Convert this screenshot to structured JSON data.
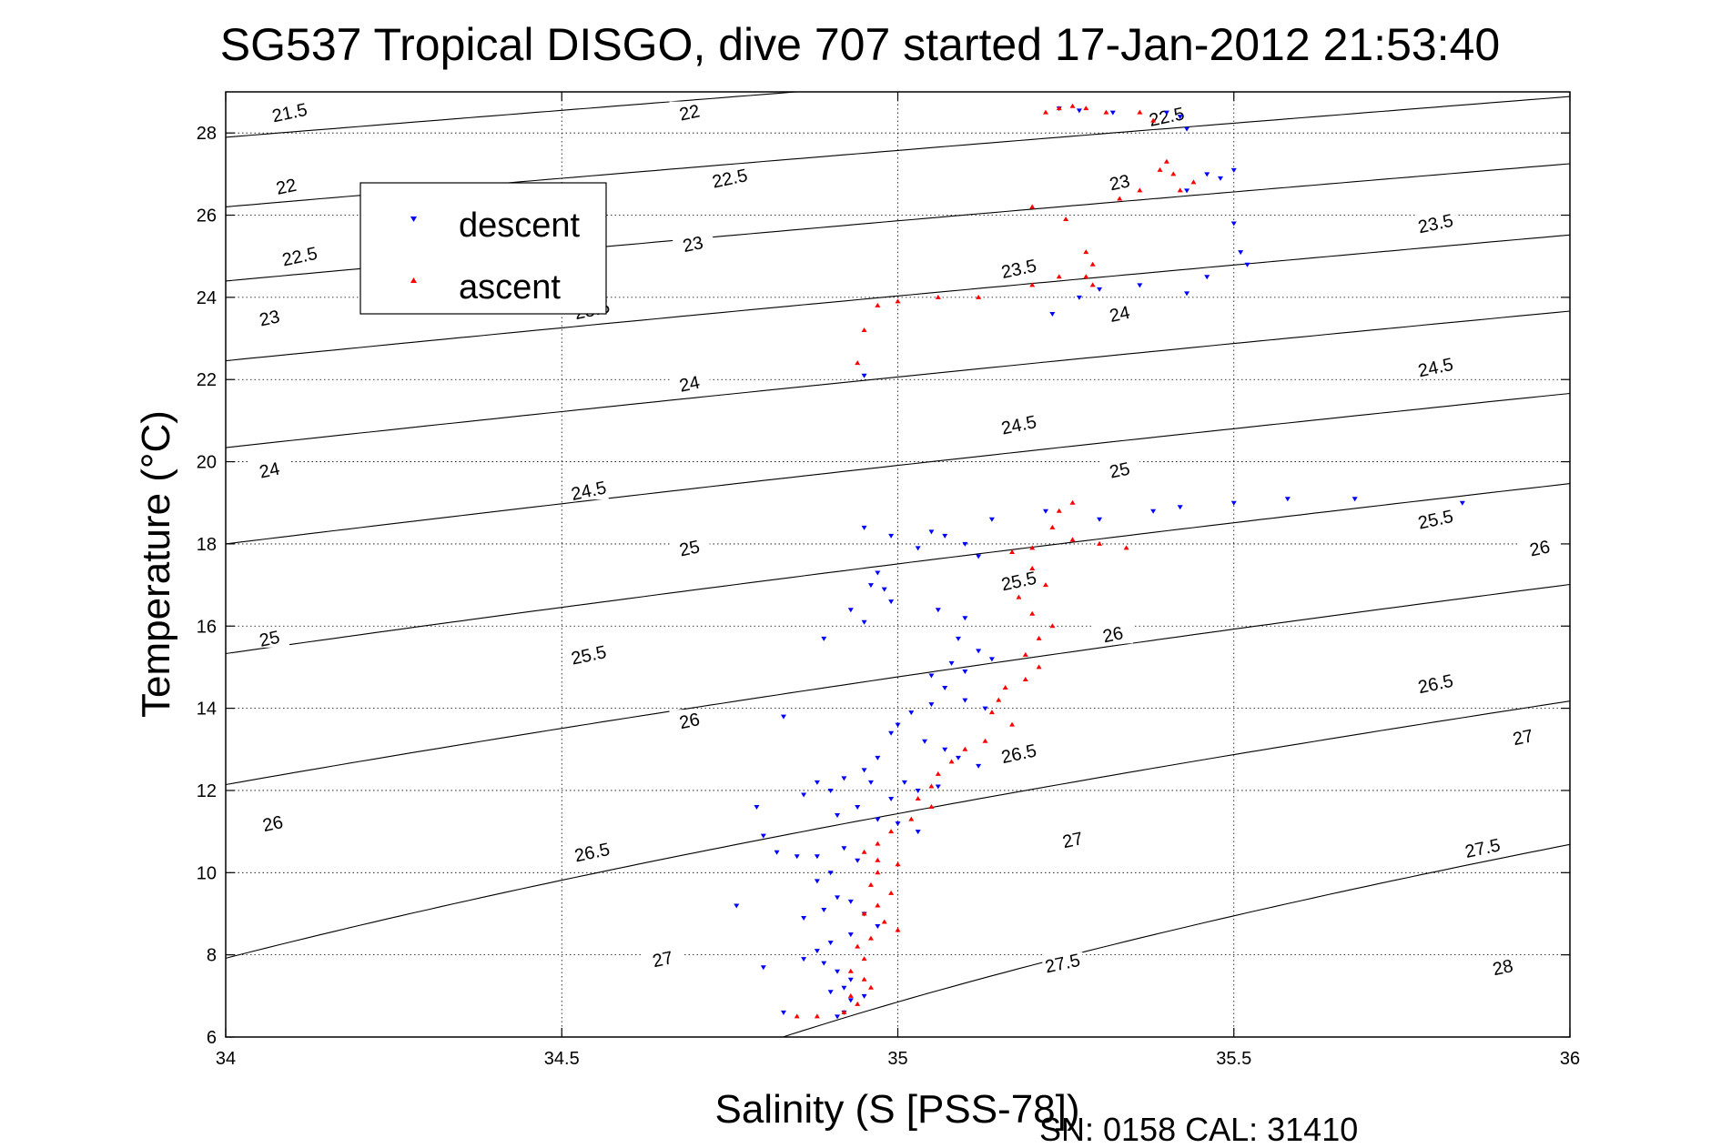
{
  "chart_data": {
    "type": "scatter",
    "title": "SG537 Tropical DISGO, dive 707 started 17-Jan-2012 21:53:40",
    "xlabel": "Salinity (S [PSS-78])",
    "ylabel": "Temperature (°C)",
    "xlim": [
      34,
      36
    ],
    "ylim": [
      6,
      29
    ],
    "xticks": [
      34,
      34.5,
      35,
      35.5,
      36
    ],
    "xtick_labels": [
      "34",
      "34.5",
      "35",
      "35.5",
      "36"
    ],
    "yticks": [
      6,
      8,
      10,
      12,
      14,
      16,
      18,
      20,
      22,
      24,
      26,
      28
    ],
    "ytick_labels": [
      "6",
      "8",
      "10",
      "12",
      "14",
      "16",
      "18",
      "20",
      "22",
      "24",
      "26",
      "28"
    ],
    "grid": true,
    "legend_position": "upper-left",
    "footer": "SN: 0158  CAL: 31410",
    "density_contours": {
      "levels": [
        21.5,
        22,
        22.5,
        23,
        23.5,
        24,
        24.5,
        25,
        25.5,
        26,
        26.5,
        27,
        27.5,
        28
      ],
      "labels": [
        {
          "text": "21.5",
          "s": 34.095,
          "t": 28.5
        },
        {
          "text": "22",
          "s": 34.09,
          "t": 26.7
        },
        {
          "text": "22.5",
          "s": 34.11,
          "t": 25.0
        },
        {
          "text": "23",
          "s": 34.065,
          "t": 23.5
        },
        {
          "text": "24",
          "s": 34.065,
          "t": 19.8
        },
        {
          "text": "25",
          "s": 34.065,
          "t": 15.7
        },
        {
          "text": "26",
          "s": 34.07,
          "t": 11.2
        },
        {
          "text": "22",
          "s": 34.69,
          "t": 28.5
        },
        {
          "text": "22.5",
          "s": 34.75,
          "t": 26.9
        },
        {
          "text": "23",
          "s": 34.695,
          "t": 25.3
        },
        {
          "text": "23.5",
          "s": 34.545,
          "t": 23.7
        },
        {
          "text": "24",
          "s": 34.69,
          "t": 21.9
        },
        {
          "text": "24.5",
          "s": 34.54,
          "t": 19.3
        },
        {
          "text": "25",
          "s": 34.69,
          "t": 17.9
        },
        {
          "text": "25.5",
          "s": 34.54,
          "t": 15.3
        },
        {
          "text": "26",
          "s": 34.69,
          "t": 13.7
        },
        {
          "text": "26.5",
          "s": 34.545,
          "t": 10.5
        },
        {
          "text": "27",
          "s": 34.65,
          "t": 7.9
        },
        {
          "text": "22.5",
          "s": 35.4,
          "t": 28.4
        },
        {
          "text": "23",
          "s": 35.33,
          "t": 26.8
        },
        {
          "text": "23.5",
          "s": 35.18,
          "t": 24.7
        },
        {
          "text": "24",
          "s": 35.33,
          "t": 23.6
        },
        {
          "text": "24.5",
          "s": 35.18,
          "t": 20.9
        },
        {
          "text": "25",
          "s": 35.33,
          "t": 19.8
        },
        {
          "text": "25.5",
          "s": 35.18,
          "t": 17.1
        },
        {
          "text": "26",
          "s": 35.32,
          "t": 15.8
        },
        {
          "text": "26.5",
          "s": 35.18,
          "t": 12.9
        },
        {
          "text": "27",
          "s": 35.26,
          "t": 10.8
        },
        {
          "text": "27.5",
          "s": 35.245,
          "t": 7.8
        },
        {
          "text": "23.5",
          "s": 35.8,
          "t": 25.8
        },
        {
          "text": "24.5",
          "s": 35.8,
          "t": 22.3
        },
        {
          "text": "25.5",
          "s": 35.8,
          "t": 18.6
        },
        {
          "text": "26",
          "s": 35.955,
          "t": 17.9
        },
        {
          "text": "26.5",
          "s": 35.8,
          "t": 14.6
        },
        {
          "text": "27",
          "s": 35.93,
          "t": 13.3
        },
        {
          "text": "27.5",
          "s": 35.87,
          "t": 10.6
        },
        {
          "text": "28",
          "s": 35.9,
          "t": 7.7
        }
      ]
    },
    "series": [
      {
        "name": "descent",
        "color": "#0000ff",
        "marker": "triangle-down",
        "points": [
          [
            35.24,
            28.6
          ],
          [
            35.27,
            28.55
          ],
          [
            35.32,
            28.5
          ],
          [
            35.4,
            28.5
          ],
          [
            35.42,
            28.4
          ],
          [
            35.43,
            28.1
          ],
          [
            35.46,
            27.0
          ],
          [
            35.48,
            26.9
          ],
          [
            35.5,
            27.1
          ],
          [
            35.43,
            26.6
          ],
          [
            35.5,
            25.8
          ],
          [
            35.51,
            25.1
          ],
          [
            35.52,
            24.8
          ],
          [
            35.46,
            24.5
          ],
          [
            35.43,
            24.1
          ],
          [
            35.36,
            24.3
          ],
          [
            35.3,
            24.2
          ],
          [
            35.27,
            24.0
          ],
          [
            35.23,
            23.6
          ],
          [
            34.95,
            22.1
          ],
          [
            35.84,
            19.0
          ],
          [
            35.68,
            19.1
          ],
          [
            35.58,
            19.1
          ],
          [
            35.5,
            19.0
          ],
          [
            35.42,
            18.9
          ],
          [
            35.38,
            18.8
          ],
          [
            35.3,
            18.6
          ],
          [
            35.22,
            18.8
          ],
          [
            35.14,
            18.6
          ],
          [
            35.05,
            18.3
          ],
          [
            34.99,
            18.2
          ],
          [
            34.95,
            18.4
          ],
          [
            35.03,
            17.9
          ],
          [
            35.07,
            18.2
          ],
          [
            35.1,
            18.0
          ],
          [
            35.12,
            17.7
          ],
          [
            34.97,
            17.3
          ],
          [
            34.96,
            17.0
          ],
          [
            34.98,
            16.9
          ],
          [
            34.99,
            16.6
          ],
          [
            34.93,
            16.4
          ],
          [
            34.95,
            16.1
          ],
          [
            34.89,
            15.7
          ],
          [
            35.06,
            16.4
          ],
          [
            35.1,
            16.2
          ],
          [
            35.09,
            15.7
          ],
          [
            35.12,
            15.4
          ],
          [
            35.14,
            15.2
          ],
          [
            35.1,
            14.9
          ],
          [
            35.08,
            15.1
          ],
          [
            35.05,
            14.8
          ],
          [
            35.07,
            14.5
          ],
          [
            35.1,
            14.2
          ],
          [
            35.13,
            14.0
          ],
          [
            35.05,
            14.1
          ],
          [
            35.02,
            13.9
          ],
          [
            35.0,
            13.6
          ],
          [
            34.99,
            13.4
          ],
          [
            35.04,
            13.2
          ],
          [
            35.07,
            13.0
          ],
          [
            35.09,
            12.8
          ],
          [
            35.12,
            12.6
          ],
          [
            34.97,
            12.8
          ],
          [
            34.95,
            12.5
          ],
          [
            34.92,
            12.3
          ],
          [
            34.96,
            12.2
          ],
          [
            35.01,
            12.2
          ],
          [
            35.03,
            12.0
          ],
          [
            35.06,
            12.1
          ],
          [
            34.99,
            11.8
          ],
          [
            34.94,
            11.6
          ],
          [
            34.91,
            11.4
          ],
          [
            34.97,
            11.3
          ],
          [
            35.0,
            11.2
          ],
          [
            35.03,
            11.0
          ],
          [
            34.9,
            12.0
          ],
          [
            34.88,
            12.2
          ],
          [
            34.86,
            11.9
          ],
          [
            34.83,
            13.8
          ],
          [
            34.79,
            11.6
          ],
          [
            34.8,
            10.9
          ],
          [
            34.82,
            10.5
          ],
          [
            34.85,
            10.4
          ],
          [
            34.88,
            10.4
          ],
          [
            34.92,
            10.6
          ],
          [
            34.94,
            10.3
          ],
          [
            34.9,
            10.0
          ],
          [
            34.88,
            9.8
          ],
          [
            34.91,
            9.4
          ],
          [
            34.93,
            9.3
          ],
          [
            34.89,
            9.1
          ],
          [
            34.86,
            8.9
          ],
          [
            34.95,
            9.0
          ],
          [
            34.97,
            8.7
          ],
          [
            34.93,
            8.5
          ],
          [
            34.9,
            8.3
          ],
          [
            34.88,
            8.1
          ],
          [
            34.86,
            7.9
          ],
          [
            34.89,
            7.8
          ],
          [
            34.91,
            7.6
          ],
          [
            34.93,
            7.4
          ],
          [
            34.92,
            7.2
          ],
          [
            34.9,
            7.1
          ],
          [
            34.93,
            6.9
          ],
          [
            34.95,
            7.0
          ],
          [
            34.92,
            6.6
          ],
          [
            34.91,
            6.5
          ],
          [
            34.83,
            6.6
          ],
          [
            34.8,
            7.7
          ],
          [
            34.76,
            9.2
          ]
        ]
      },
      {
        "name": "ascent",
        "color": "#ff0000",
        "marker": "triangle-up",
        "points": [
          [
            35.22,
            28.5
          ],
          [
            35.24,
            28.6
          ],
          [
            35.26,
            28.65
          ],
          [
            35.28,
            28.6
          ],
          [
            35.31,
            28.5
          ],
          [
            35.36,
            28.5
          ],
          [
            35.38,
            28.3
          ],
          [
            35.4,
            27.3
          ],
          [
            35.41,
            27.0
          ],
          [
            35.39,
            27.1
          ],
          [
            35.36,
            26.6
          ],
          [
            35.42,
            26.6
          ],
          [
            35.44,
            26.8
          ],
          [
            35.33,
            26.4
          ],
          [
            35.2,
            26.2
          ],
          [
            35.25,
            25.9
          ],
          [
            35.28,
            25.1
          ],
          [
            35.29,
            24.8
          ],
          [
            35.28,
            24.5
          ],
          [
            35.29,
            24.3
          ],
          [
            35.24,
            24.5
          ],
          [
            35.2,
            24.3
          ],
          [
            35.12,
            24.0
          ],
          [
            35.06,
            24.0
          ],
          [
            35.0,
            23.9
          ],
          [
            34.97,
            23.8
          ],
          [
            34.95,
            23.2
          ],
          [
            34.94,
            22.4
          ],
          [
            35.26,
            19.0
          ],
          [
            35.24,
            18.8
          ],
          [
            35.23,
            18.4
          ],
          [
            35.26,
            18.1
          ],
          [
            35.3,
            18.0
          ],
          [
            35.34,
            17.9
          ],
          [
            35.2,
            17.9
          ],
          [
            35.17,
            17.8
          ],
          [
            35.2,
            17.4
          ],
          [
            35.22,
            17.0
          ],
          [
            35.18,
            16.7
          ],
          [
            35.2,
            16.3
          ],
          [
            35.23,
            16.0
          ],
          [
            35.21,
            15.7
          ],
          [
            35.19,
            15.3
          ],
          [
            35.21,
            15.0
          ],
          [
            35.19,
            14.7
          ],
          [
            35.16,
            14.5
          ],
          [
            35.15,
            14.2
          ],
          [
            35.14,
            13.9
          ],
          [
            35.17,
            13.6
          ],
          [
            35.13,
            13.2
          ],
          [
            35.1,
            13.0
          ],
          [
            35.08,
            12.7
          ],
          [
            35.06,
            12.4
          ],
          [
            35.05,
            12.1
          ],
          [
            35.03,
            11.8
          ],
          [
            35.05,
            11.6
          ],
          [
            35.02,
            11.3
          ],
          [
            34.99,
            11.0
          ],
          [
            34.97,
            10.7
          ],
          [
            34.95,
            10.5
          ],
          [
            34.97,
            10.3
          ],
          [
            35.0,
            10.2
          ],
          [
            34.97,
            10.0
          ],
          [
            34.96,
            9.7
          ],
          [
            34.99,
            9.5
          ],
          [
            34.97,
            9.2
          ],
          [
            34.95,
            9.0
          ],
          [
            34.98,
            8.8
          ],
          [
            35.0,
            8.6
          ],
          [
            34.96,
            8.4
          ],
          [
            34.94,
            8.2
          ],
          [
            34.95,
            7.9
          ],
          [
            34.93,
            7.6
          ],
          [
            34.95,
            7.4
          ],
          [
            34.96,
            7.2
          ],
          [
            34.93,
            7.0
          ],
          [
            34.94,
            6.8
          ],
          [
            34.92,
            6.6
          ],
          [
            34.88,
            6.5
          ],
          [
            34.85,
            6.5
          ]
        ]
      }
    ]
  }
}
